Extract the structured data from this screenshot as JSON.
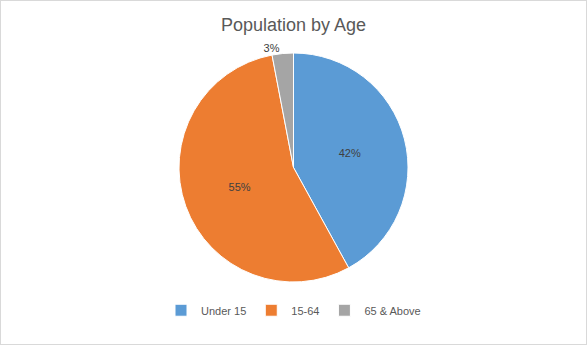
{
  "chart_data": {
    "type": "pie",
    "title": "Population by Age",
    "categories": [
      "Under 15",
      "15-64",
      "65 & Above"
    ],
    "values": [
      42,
      55,
      3
    ],
    "value_labels": [
      "42%",
      "55%",
      "3%"
    ],
    "colors": [
      "#5b9bd5",
      "#ed7d31",
      "#a5a5a5"
    ],
    "data_labels": true,
    "legend": "bottom"
  }
}
